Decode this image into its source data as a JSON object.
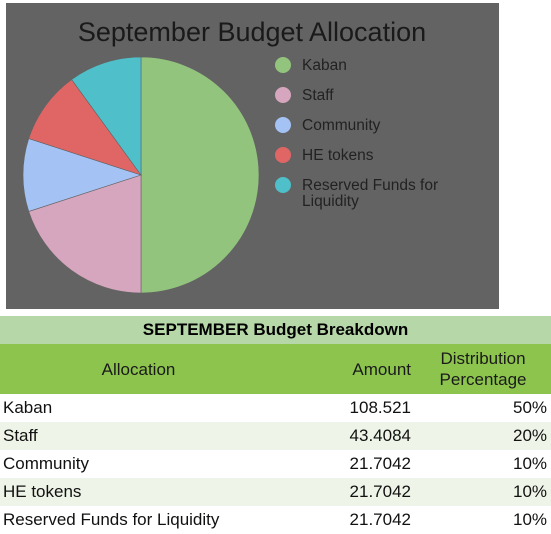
{
  "chart_data": {
    "type": "pie",
    "title": "September Budget Allocation",
    "categories": [
      "Kaban",
      "Staff",
      "Community",
      "HE tokens",
      "Reserved Funds for Liquidity"
    ],
    "values": [
      50,
      20,
      10,
      10,
      10
    ],
    "colors": [
      "#93c47d",
      "#d5a6bd",
      "#a4c2f4",
      "#e06666",
      "#4fbfc9"
    ],
    "legend_position": "right",
    "legend": [
      {
        "lines": [
          "Kaban"
        ]
      },
      {
        "lines": [
          "Staff"
        ]
      },
      {
        "lines": [
          "Community"
        ]
      },
      {
        "lines": [
          "HE tokens"
        ]
      },
      {
        "lines": [
          "Reserved Funds for",
          "Liquidity"
        ]
      }
    ]
  },
  "table": {
    "title": "SEPTEMBER Budget Breakdown",
    "headers": {
      "allocation": "Allocation",
      "amount": "Amount",
      "distribution_line1": "Distribution",
      "distribution_line2": "Percentage"
    },
    "rows": [
      {
        "allocation": "Kaban",
        "amount": "108.521",
        "percentage": "50%"
      },
      {
        "allocation": "Staff",
        "amount": "43.4084",
        "percentage": "20%"
      },
      {
        "allocation": "Community",
        "amount": "21.7042",
        "percentage": "10%"
      },
      {
        "allocation": "HE tokens",
        "amount": "21.7042",
        "percentage": "10%"
      },
      {
        "allocation": "Reserved Funds for Liquidity",
        "amount": "21.7042",
        "percentage": "10%"
      }
    ]
  },
  "colors": {
    "chart_background": "#636363",
    "table_title_bg": "#b6d7a8",
    "table_header_bg": "#8dc44d",
    "row_alt_bg": "#eef5e8"
  }
}
